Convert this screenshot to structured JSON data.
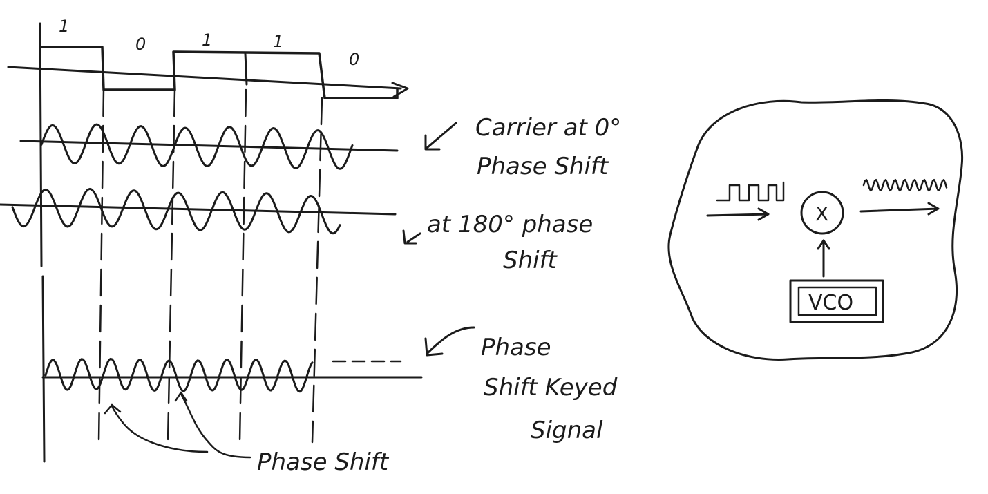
{
  "bits": [
    "1",
    "0",
    "1",
    "1",
    "0"
  ],
  "labels": {
    "carrier_0": [
      "Carrier at 0°",
      "Phase Shift"
    ],
    "carrier_180": [
      "at 180° phase",
      "Shift"
    ],
    "psk_signal": [
      "Phase",
      "Shift Keyed",
      "Signal"
    ],
    "phase_shift": "Phase Shift"
  },
  "modulator": {
    "multiplier_symbol": "X",
    "oscillator_label": "VCO"
  },
  "colors": {
    "ink": "#1b1b1b",
    "background": "#ffffff"
  }
}
